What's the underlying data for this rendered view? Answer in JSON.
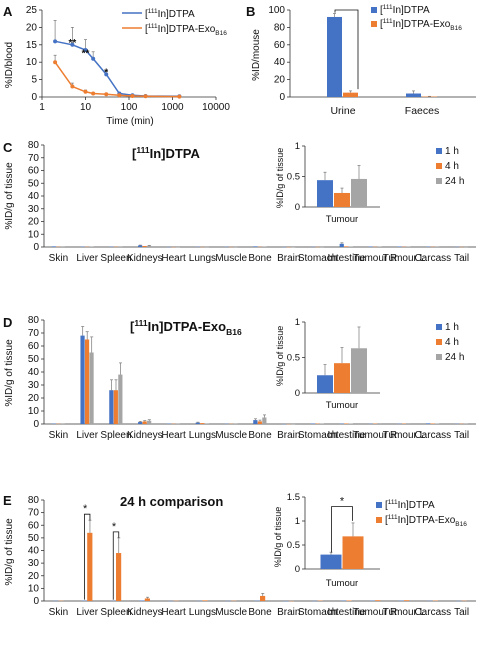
{
  "colors": {
    "dtpa": "#4472C4",
    "exo": "#ED7D31",
    "h1": "#4472C4",
    "h4": "#ED7D31",
    "h24": "#A5A5A5",
    "axis": "#333333",
    "grid": "#d9d9d9"
  },
  "tissues": [
    "Skin",
    "Liver",
    "Spleen",
    "Kidneys",
    "Heart",
    "Lungs",
    "Muscle",
    "Bone",
    "Brain",
    "Stomach",
    "Intestine",
    "Tumour R",
    "Tumour L",
    "Carcass",
    "Tail"
  ],
  "chart_data": [
    {
      "id": "A",
      "panel_label": "A",
      "type": "line",
      "xlabel": "Time (min)",
      "ylabel": "%ID/blood",
      "xscale": "log",
      "xlim": [
        1,
        10000
      ],
      "ylim": [
        0,
        25
      ],
      "xticks": [
        "1",
        "10",
        "100",
        "1000",
        "10000"
      ],
      "yticks": [
        "0",
        "5",
        "10",
        "15",
        "20",
        "25"
      ],
      "series": [
        {
          "name_prefix": "[",
          "name_sup": "111",
          "name_main": "In]DTPA",
          "name_sub": "",
          "color": "#4472C4",
          "x": [
            2,
            5,
            10,
            15,
            30,
            60,
            120,
            240,
            1440
          ],
          "y": [
            16,
            15,
            13.5,
            11,
            6.5,
            1,
            0.5,
            0.3,
            0.2
          ],
          "err": [
            6,
            5,
            3,
            2,
            1,
            0.3,
            0.2,
            0.1,
            0.1
          ]
        },
        {
          "name_prefix": "[",
          "name_sup": "111",
          "name_main": "In]DTPA-Exo",
          "name_sub": "B16",
          "color": "#ED7D31",
          "x": [
            2,
            5,
            10,
            15,
            30,
            60,
            120,
            240,
            1440
          ],
          "y": [
            10,
            3,
            1.5,
            1,
            0.8,
            0.5,
            0.3,
            0.2,
            0.1
          ],
          "err": [
            2,
            1,
            0.5,
            0.3,
            0.2,
            0.1,
            0.1,
            0.1,
            0.1
          ]
        }
      ],
      "annotations": [
        "**",
        "**",
        "*"
      ]
    },
    {
      "id": "B",
      "panel_label": "B",
      "type": "bar",
      "ylabel": "%ID/mouse",
      "ylim": [
        0,
        100
      ],
      "yticks": [
        "0",
        "20",
        "40",
        "60",
        "80",
        "100"
      ],
      "categories": [
        "Urine",
        "Faeces"
      ],
      "series": [
        {
          "name_prefix": "[",
          "name_sup": "111",
          "name_main": "In]DTPA",
          "name_sub": "",
          "color": "#4472C4",
          "values": [
            92,
            4
          ],
          "err": [
            4,
            3
          ]
        },
        {
          "name_prefix": "[",
          "name_sup": "111",
          "name_main": "In]DTPA-Exo",
          "name_sub": "B16",
          "color": "#ED7D31",
          "values": [
            5,
            0.5
          ],
          "err": [
            2,
            0.3
          ]
        }
      ]
    },
    {
      "id": "C",
      "panel_label": "C",
      "type": "bar",
      "title_prefix": "[",
      "title_sup": "111",
      "title_main": "In]DTPA",
      "title_sub": "",
      "ylabel": "%ID/g of tissue",
      "ylim": [
        0,
        80
      ],
      "yticks": [
        "0",
        "10",
        "20",
        "30",
        "40",
        "50",
        "60",
        "70",
        "80"
      ],
      "series": [
        {
          "name": "1 h",
          "color": "#4472C4",
          "values": [
            0.5,
            0.3,
            0.3,
            1.2,
            0.1,
            0.2,
            0.2,
            0.5,
            0.05,
            0.2,
            2.5,
            0.4,
            0.4,
            0.3,
            0.2
          ],
          "err": [
            0.2,
            0.1,
            0.1,
            0.3,
            0.05,
            0.1,
            0.1,
            0.2,
            0.02,
            0.1,
            0.8,
            0.1,
            0.1,
            0.1,
            0.1
          ]
        },
        {
          "name": "4 h",
          "color": "#ED7D31",
          "values": [
            0.2,
            0.2,
            0.2,
            0.8,
            0.05,
            0.1,
            0.1,
            0.2,
            0.02,
            0.1,
            0.5,
            0.2,
            0.2,
            0.2,
            0.1
          ],
          "err": [
            0.1,
            0.1,
            0.1,
            0.2,
            0.02,
            0.05,
            0.05,
            0.1,
            0.01,
            0.05,
            0.2,
            0.1,
            0.1,
            0.1,
            0.05
          ]
        },
        {
          "name": "24 h",
          "color": "#A5A5A5",
          "values": [
            0.2,
            0.3,
            0.2,
            1.0,
            0.05,
            0.1,
            0.1,
            0.3,
            0.02,
            0.1,
            0.3,
            0.3,
            0.3,
            0.2,
            0.1
          ],
          "err": [
            0.1,
            0.1,
            0.1,
            0.3,
            0.02,
            0.05,
            0.05,
            0.1,
            0.01,
            0.05,
            0.1,
            0.1,
            0.1,
            0.1,
            0.05
          ]
        }
      ],
      "inset": {
        "ylabel": "%ID/g of tissue",
        "category": "Tumour",
        "ylim": [
          0,
          1
        ],
        "yticks": [
          "0",
          "0.5",
          "1"
        ],
        "values": [
          0.44,
          0.23,
          0.46
        ],
        "err": [
          0.13,
          0.08,
          0.22
        ]
      }
    },
    {
      "id": "D",
      "panel_label": "D",
      "type": "bar",
      "title_prefix": "[",
      "title_sup": "111",
      "title_main": "In]DTPA-Exo",
      "title_sub": "B16",
      "ylabel": "%ID/g of tissue",
      "ylim": [
        0,
        80
      ],
      "yticks": [
        "0",
        "10",
        "20",
        "30",
        "40",
        "50",
        "60",
        "70",
        "80"
      ],
      "series": [
        {
          "name": "1 h",
          "color": "#4472C4",
          "values": [
            0.3,
            68,
            26,
            1.5,
            0.3,
            1,
            0.2,
            3,
            0.05,
            0.4,
            0.3,
            0.2,
            0.2,
            0.5,
            0.2
          ],
          "err": [
            0.1,
            7,
            8,
            0.5,
            0.1,
            0.4,
            0.1,
            1,
            0.02,
            0.2,
            0.1,
            0.1,
            0.1,
            0.2,
            0.1
          ]
        },
        {
          "name": "4 h",
          "color": "#ED7D31",
          "values": [
            0.2,
            65,
            26,
            2,
            0.2,
            0.7,
            0.2,
            2,
            0.05,
            0.3,
            0.4,
            0.3,
            0.3,
            0.4,
            0.2
          ],
          "err": [
            0.1,
            6,
            8,
            0.6,
            0.1,
            0.3,
            0.1,
            1,
            0.02,
            0.1,
            0.2,
            0.1,
            0.1,
            0.2,
            0.1
          ]
        },
        {
          "name": "24 h",
          "color": "#A5A5A5",
          "values": [
            0.2,
            55,
            38,
            2.5,
            0.2,
            0.5,
            0.2,
            5,
            0.05,
            0.3,
            0.4,
            0.6,
            0.6,
            0.3,
            0.2
          ],
          "err": [
            0.1,
            12,
            9,
            0.8,
            0.1,
            0.2,
            0.1,
            2,
            0.02,
            0.1,
            0.2,
            0.3,
            0.3,
            0.1,
            0.1
          ]
        }
      ],
      "inset": {
        "ylabel": "%ID/g of tissue",
        "category": "Tumour",
        "ylim": [
          0,
          1
        ],
        "yticks": [
          "0",
          "0.5",
          "1"
        ],
        "values": [
          0.25,
          0.42,
          0.63
        ],
        "err": [
          0.15,
          0.22,
          0.3
        ]
      }
    },
    {
      "id": "E",
      "panel_label": "E",
      "type": "bar",
      "title": "24 h comparison",
      "ylabel": "%ID/g of tissue",
      "ylim": [
        0,
        80
      ],
      "yticks": [
        "0",
        "10",
        "20",
        "30",
        "40",
        "50",
        "60",
        "70",
        "80"
      ],
      "series": [
        {
          "name_prefix": "[",
          "name_sup": "111",
          "name_main": "In]DTPA",
          "name_sub": "",
          "color": "#4472C4",
          "values": [
            0.2,
            0.3,
            0.2,
            0.4,
            0.05,
            0.1,
            0.1,
            0.3,
            0.02,
            0.1,
            0.3,
            0.3,
            0.3,
            0.2,
            0.1
          ],
          "err": [
            0.1,
            0.1,
            0.1,
            0.2,
            0.02,
            0.05,
            0.05,
            0.1,
            0.01,
            0.05,
            0.1,
            0.1,
            0.1,
            0.1,
            0.05
          ]
        },
        {
          "name_prefix": "[",
          "name_sup": "111",
          "name_main": "In]DTPA-Exo",
          "name_sub": "B16",
          "color": "#ED7D31",
          "values": [
            0.2,
            54,
            38,
            2,
            0.2,
            0.5,
            0.2,
            4,
            0.05,
            0.3,
            0.4,
            0.6,
            0.6,
            0.3,
            0.2
          ],
          "err": [
            0.1,
            10,
            12,
            1,
            0.1,
            0.2,
            0.1,
            2,
            0.02,
            0.1,
            0.2,
            0.3,
            0.3,
            0.1,
            0.1
          ]
        }
      ],
      "annotations": [
        "*",
        "*"
      ],
      "inset": {
        "ylabel": "%ID/g of tissue",
        "category": "Tumour",
        "ylim": [
          0,
          1.5
        ],
        "yticks": [
          "0",
          "0.5",
          "1",
          "1.5"
        ],
        "values": [
          0.3,
          0.68
        ],
        "err": [
          0.05,
          0.28
        ],
        "annotation": "*"
      }
    }
  ]
}
